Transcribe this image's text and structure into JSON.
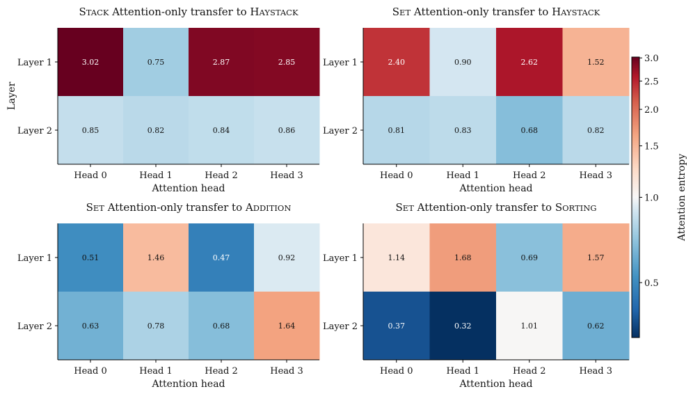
{
  "chart_data": {
    "type": "heatmap",
    "shared": {
      "y_axis_label": "Layer",
      "colorbar": {
        "label": "Attention entropy",
        "ticks": [
          "0.5",
          "1.0",
          "1.5",
          "2.0",
          "2.5",
          "3.0"
        ],
        "tick_values": [
          0.5,
          1.0,
          1.5,
          2.0,
          2.5,
          3.0
        ],
        "range": [
          0.32,
          3.02
        ],
        "center": 1.0,
        "colormap": "RdBu_r"
      }
    },
    "panels": [
      {
        "id": "stack-haystack",
        "title_parts": [
          {
            "text": "S",
            "sc": false
          },
          {
            "text": "TACK",
            "sc": true
          },
          {
            "text": " Attention-only transfer to ",
            "sc": false
          },
          {
            "text": "H",
            "sc": false
          },
          {
            "text": "AYSTACK",
            "sc": true
          }
        ],
        "xlabel": "Attention head",
        "ylabel": "Layer",
        "x_categories": [
          "Head 0",
          "Head 1",
          "Head 2",
          "Head 3"
        ],
        "y_categories": [
          "Layer 1",
          "Layer 2"
        ],
        "values": [
          [
            3.02,
            0.75,
            2.87,
            2.85
          ],
          [
            0.85,
            0.82,
            0.84,
            0.86
          ]
        ],
        "labels": [
          [
            "3.02",
            "0.75",
            "2.87",
            "2.85"
          ],
          [
            "0.85",
            "0.82",
            "0.84",
            "0.86"
          ]
        ]
      },
      {
        "id": "set-haystack",
        "title_parts": [
          {
            "text": "S",
            "sc": false
          },
          {
            "text": "ET",
            "sc": true
          },
          {
            "text": " Attention-only transfer to ",
            "sc": false
          },
          {
            "text": "H",
            "sc": false
          },
          {
            "text": "AYSTACK",
            "sc": true
          }
        ],
        "xlabel": "Attention head",
        "ylabel": "",
        "x_categories": [
          "Head 0",
          "Head 1",
          "Head 2",
          "Head 3"
        ],
        "y_categories": [
          "Layer 1",
          "Layer 2"
        ],
        "values": [
          [
            2.4,
            0.9,
            2.62,
            1.52
          ],
          [
            0.81,
            0.83,
            0.68,
            0.82
          ]
        ],
        "labels": [
          [
            "2.40",
            "0.90",
            "2.62",
            "1.52"
          ],
          [
            "0.81",
            "0.83",
            "0.68",
            "0.82"
          ]
        ]
      },
      {
        "id": "set-addition",
        "title_parts": [
          {
            "text": "S",
            "sc": false
          },
          {
            "text": "ET",
            "sc": true
          },
          {
            "text": " Attention-only transfer to ",
            "sc": false
          },
          {
            "text": "A",
            "sc": false
          },
          {
            "text": "DDITION",
            "sc": true
          }
        ],
        "xlabel": "Attention head",
        "ylabel": "",
        "x_categories": [
          "Head 0",
          "Head 1",
          "Head 2",
          "Head 3"
        ],
        "y_categories": [
          "Layer 1",
          "Layer 2"
        ],
        "values": [
          [
            0.51,
            1.46,
            0.47,
            0.92
          ],
          [
            0.63,
            0.78,
            0.68,
            1.64
          ]
        ],
        "labels": [
          [
            "0.51",
            "1.46",
            "0.47",
            "0.92"
          ],
          [
            "0.63",
            "0.78",
            "0.68",
            "1.64"
          ]
        ]
      },
      {
        "id": "set-sorting",
        "title_parts": [
          {
            "text": "S",
            "sc": false
          },
          {
            "text": "ET",
            "sc": true
          },
          {
            "text": " Attention-only transfer to ",
            "sc": false
          },
          {
            "text": "S",
            "sc": false
          },
          {
            "text": "ORTING",
            "sc": true
          }
        ],
        "xlabel": "Attention head",
        "ylabel": "",
        "x_categories": [
          "Head 0",
          "Head 1",
          "Head 2",
          "Head 3"
        ],
        "y_categories": [
          "Layer 1",
          "Layer 2"
        ],
        "values": [
          [
            1.14,
            1.68,
            0.69,
            1.57
          ],
          [
            0.37,
            0.32,
            1.01,
            0.62
          ]
        ],
        "labels": [
          [
            "1.14",
            "1.68",
            "0.69",
            "1.57"
          ],
          [
            "0.37",
            "0.32",
            "1.01",
            "0.62"
          ]
        ]
      }
    ]
  }
}
